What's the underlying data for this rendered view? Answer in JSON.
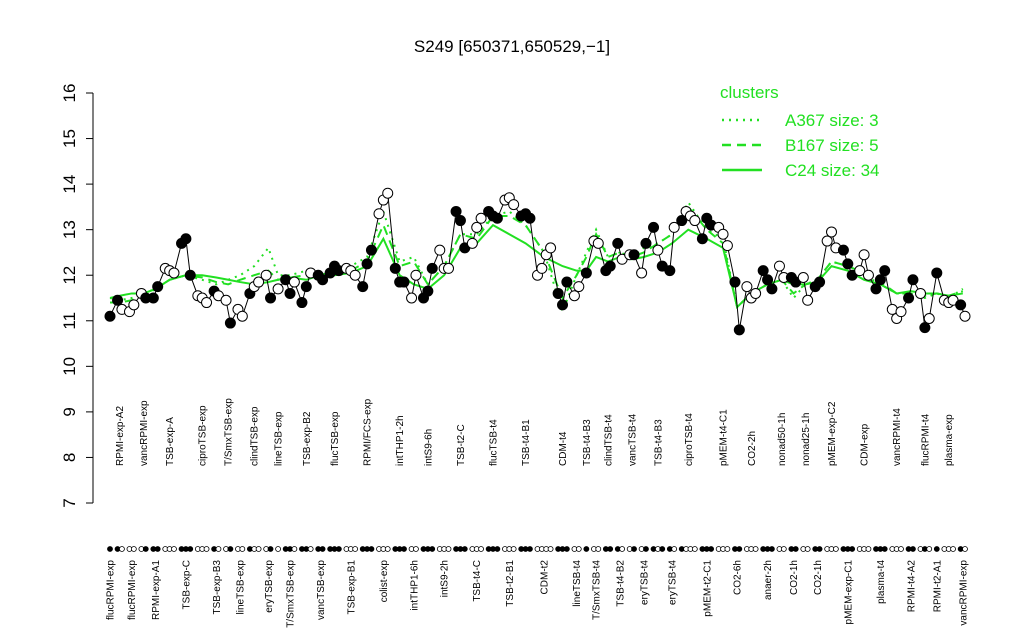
{
  "chart_data": {
    "type": "cluster-profile",
    "title": "S249 [650371,650529,−1]",
    "ylim": [
      7,
      16
    ],
    "yticks": [
      7,
      8,
      9,
      10,
      11,
      12,
      13,
      14,
      15,
      16
    ],
    "legend": {
      "title": "clusters",
      "position": "top-right"
    },
    "series": [
      {
        "name": "A367 size: 3",
        "color": "#22e022",
        "style": "dotted"
      },
      {
        "name": "B167 size: 5",
        "color": "#22e022",
        "style": "dashed"
      },
      {
        "name": "C24 size: 34",
        "color": "#22e022",
        "style": "solid"
      }
    ],
    "groups": [
      {
        "label": "flucRPMI-exp",
        "values": [
          11.1
        ],
        "filled": [
          1
        ],
        "trend": [
          11.5,
          11.4,
          11.5
        ]
      },
      {
        "label": "RPMI-exp-A2",
        "values": [
          11.45,
          11.25
        ],
        "filled": [
          1,
          0
        ],
        "trend": [
          11.45,
          11.4,
          11.55
        ]
      },
      {
        "label": "flucRPMI-exp",
        "values": [
          11.2,
          11.35
        ],
        "filled": [
          0,
          0
        ],
        "trend": [
          11.5,
          11.45,
          11.6
        ]
      },
      {
        "label": "vancRPMI-exp",
        "values": [
          11.6,
          11.5
        ],
        "filled": [
          0,
          1
        ],
        "trend": [
          11.6,
          11.55,
          11.6
        ]
      },
      {
        "label": "RPMI-exp-A1",
        "values": [
          11.5,
          11.75
        ],
        "filled": [
          1,
          1
        ],
        "trend": [
          11.7,
          11.7,
          11.7
        ]
      },
      {
        "label": "TSB-exp-A",
        "values": [
          12.15,
          12.1,
          12.05
        ],
        "filled": [
          0,
          0,
          0
        ],
        "trend": [
          11.9,
          11.9,
          11.9
        ]
      },
      {
        "label": "TSB-exp-C",
        "values": [
          12.7,
          12.8,
          12.0
        ],
        "filled": [
          1,
          1,
          1
        ],
        "trend": [
          12.0,
          12.0,
          12.0
        ]
      },
      {
        "label": "ciproTSB-exp",
        "values": [
          11.55,
          11.5,
          11.4
        ],
        "filled": [
          0,
          0,
          0
        ],
        "trend": [
          11.9,
          11.95,
          12.0
        ]
      },
      {
        "label": "TSB-exp-B3",
        "values": [
          11.65,
          11.55
        ],
        "filled": [
          1,
          0
        ],
        "trend": [
          11.8,
          11.85,
          11.95
        ]
      },
      {
        "label": "T/SmxTSB-exp",
        "values": [
          11.45,
          10.95
        ],
        "filled": [
          0,
          1
        ],
        "trend": [
          11.9,
          11.8,
          11.9
        ]
      },
      {
        "label": "lineTSB-exp",
        "values": [
          11.25,
          11.1
        ],
        "filled": [
          0,
          0
        ],
        "trend": [
          12.0,
          11.9,
          11.85
        ]
      },
      {
        "label": "clindTSB-exp",
        "values": [
          11.6,
          11.75,
          11.85
        ],
        "filled": [
          1,
          0,
          0
        ],
        "trend": [
          12.2,
          12.0,
          11.8
        ]
      },
      {
        "label": "eryTSB-exp",
        "values": [
          12.0,
          11.5
        ],
        "filled": [
          0,
          1
        ],
        "trend": [
          12.6,
          12.1,
          11.85
        ]
      },
      {
        "label": "lineTSB-exp",
        "values": [
          11.7
        ],
        "filled": [
          0
        ],
        "trend": [
          12.0,
          11.9,
          11.9
        ]
      },
      {
        "label": "T/SmxTSB-exp",
        "values": [
          11.9,
          11.6,
          11.85
        ],
        "filled": [
          1,
          1,
          0
        ],
        "trend": [
          12.0,
          11.95,
          11.95
        ]
      },
      {
        "label": "TSB-exp-B2",
        "values": [
          11.4,
          11.75,
          12.05
        ],
        "filled": [
          1,
          1,
          0
        ],
        "trend": [
          12.1,
          12.0,
          11.9
        ]
      },
      {
        "label": "vancTSB-exp",
        "values": [
          12.0,
          11.9
        ],
        "filled": [
          1,
          1
        ],
        "trend": [
          12.0,
          12.0,
          12.0
        ]
      },
      {
        "label": "flucTSB-exp",
        "values": [
          12.05,
          12.2,
          12.1
        ],
        "filled": [
          1,
          1,
          1
        ],
        "trend": [
          12.1,
          12.1,
          12.0
        ]
      },
      {
        "label": "TSB-exp-B1",
        "values": [
          12.15,
          12.1,
          12.0
        ],
        "filled": [
          0,
          0,
          0
        ],
        "trend": [
          12.2,
          12.1,
          12.05
        ]
      },
      {
        "label": "RPMI/FCS-exp",
        "values": [
          11.75,
          12.25,
          12.55
        ],
        "filled": [
          1,
          1,
          1
        ],
        "trend": [
          12.4,
          12.3,
          12.2
        ]
      },
      {
        "label": "colist-exp",
        "values": [
          13.35,
          13.65,
          13.8
        ],
        "filled": [
          0,
          0,
          0
        ],
        "trend": [
          13.4,
          13.1,
          12.8
        ]
      },
      {
        "label": "intTHP1-2h",
        "values": [
          12.15,
          11.85,
          11.85
        ],
        "filled": [
          1,
          1,
          1
        ],
        "trend": [
          12.3,
          12.2,
          12.0
        ]
      },
      {
        "label": "intTHP1-6h",
        "values": [
          11.5,
          12.0
        ],
        "filled": [
          0,
          0
        ],
        "trend": [
          12.4,
          12.3,
          11.8
        ]
      },
      {
        "label": "intS9-6h",
        "values": [
          11.5,
          11.65,
          12.15
        ],
        "filled": [
          1,
          1,
          1
        ],
        "trend": [
          11.8,
          11.8,
          11.7
        ]
      },
      {
        "label": "intS9-2h",
        "values": [
          12.55,
          12.15,
          12.15
        ],
        "filled": [
          0,
          0,
          0
        ],
        "trend": [
          12.2,
          12.2,
          12.0
        ]
      },
      {
        "label": "TSB-t2-C",
        "values": [
          13.4,
          13.2,
          12.6
        ],
        "filled": [
          1,
          1,
          1
        ],
        "trend": [
          12.9,
          12.9,
          12.6
        ]
      },
      {
        "label": "TSB-t4-C",
        "values": [
          12.7,
          13.05,
          13.25
        ],
        "filled": [
          0,
          0,
          0
        ],
        "trend": [
          12.9,
          12.8,
          12.7
        ]
      },
      {
        "label": "flucTSB-t4",
        "values": [
          13.4,
          13.3,
          13.25
        ],
        "filled": [
          1,
          1,
          1
        ],
        "trend": [
          13.3,
          13.3,
          13.1
        ]
      },
      {
        "label": "TSB-t2-B1",
        "values": [
          13.65,
          13.7,
          13.55
        ],
        "filled": [
          0,
          0,
          0
        ],
        "trend": [
          13.4,
          13.3,
          12.9
        ]
      },
      {
        "label": "TSB-t4-B1",
        "values": [
          13.3,
          13.35,
          13.25
        ],
        "filled": [
          1,
          1,
          1
        ],
        "trend": [
          13.1,
          13.1,
          12.7
        ]
      },
      {
        "label": "CDM-t2",
        "values": [
          12.0,
          12.15,
          12.45,
          12.6
        ],
        "filled": [
          0,
          0,
          0,
          0
        ],
        "trend": [
          12.5,
          12.5,
          12.4
        ]
      },
      {
        "label": "CDM-t4",
        "values": [
          11.6,
          11.35,
          11.85
        ],
        "filled": [
          1,
          1,
          1
        ],
        "trend": [
          11.2,
          11.5,
          12.2
        ]
      },
      {
        "label": "lineTSB-t4",
        "values": [
          11.55,
          11.75
        ],
        "filled": [
          0,
          0
        ],
        "trend": [
          12.0,
          12.0,
          12.1
        ]
      },
      {
        "label": "TSB-t4-B3",
        "values": [
          12.05
        ],
        "filled": [
          1
        ],
        "trend": [
          12.5,
          12.4,
          12.1
        ]
      },
      {
        "label": "T/SmxTSB-t4",
        "values": [
          12.75,
          12.7
        ],
        "filled": [
          0,
          0
        ],
        "trend": [
          13.0,
          12.9,
          12.4
        ]
      },
      {
        "label": "clindTSB-t4",
        "values": [
          12.1,
          12.2
        ],
        "filled": [
          1,
          1
        ],
        "trend": [
          12.4,
          12.4,
          12.3
        ]
      },
      {
        "label": "TSB-t4-B2",
        "values": [
          12.7,
          12.35
        ],
        "filled": [
          1,
          0
        ],
        "trend": [
          12.5,
          12.5,
          12.4
        ]
      },
      {
        "label": "vancTSB-t4",
        "values": [
          12.45,
          12.45
        ],
        "filled": [
          0,
          1
        ],
        "trend": [
          12.4,
          12.4,
          12.35
        ]
      },
      {
        "label": "eryTSB-t4",
        "values": [
          12.05,
          12.7
        ],
        "filled": [
          0,
          1
        ],
        "trend": [
          12.6,
          12.5,
          12.4
        ]
      },
      {
        "label": "TSB-t4-B3",
        "values": [
          13.05,
          12.55,
          12.2
        ],
        "filled": [
          1,
          0,
          1
        ],
        "trend": [
          12.7,
          12.7,
          12.5
        ]
      },
      {
        "label": "eryTSB-t4",
        "values": [
          12.1,
          13.05
        ],
        "filled": [
          1,
          0
        ],
        "trend": [
          12.9,
          12.9,
          12.7
        ]
      },
      {
        "label": "ciproTSB-t4",
        "values": [
          13.2,
          13.4,
          13.3,
          13.2
        ],
        "filled": [
          1,
          0,
          0,
          0
        ],
        "trend": [
          13.6,
          13.5,
          13.0
        ]
      },
      {
        "label": "pMEM-t2-C1",
        "values": [
          12.8,
          13.25,
          13.1
        ],
        "filled": [
          1,
          1,
          1
        ],
        "trend": [
          13.0,
          13.0,
          12.8
        ]
      },
      {
        "label": "pMEM-t4-C1",
        "values": [
          13.05,
          12.9,
          12.65
        ],
        "filled": [
          0,
          0,
          0
        ],
        "trend": [
          12.8,
          12.7,
          12.6
        ]
      },
      {
        "label": "CO2-6h",
        "values": [
          11.85,
          10.8
        ],
        "filled": [
          1,
          1
        ],
        "trend": [
          11.3,
          11.3,
          11.3
        ]
      },
      {
        "label": "CO2-2h",
        "values": [
          11.75,
          11.5,
          11.6
        ],
        "filled": [
          0,
          0,
          0
        ],
        "trend": [
          11.6,
          11.6,
          11.6
        ]
      },
      {
        "label": "anaer-2h",
        "values": [
          12.1,
          11.9,
          11.7
        ],
        "filled": [
          1,
          1,
          1
        ],
        "trend": [
          11.8,
          11.8,
          11.8
        ]
      },
      {
        "label": "nonad50-1h",
        "values": [
          12.2,
          11.95
        ],
        "filled": [
          0,
          0
        ],
        "trend": [
          11.9,
          11.9,
          11.9
        ]
      },
      {
        "label": "CO2-1h",
        "values": [
          11.95,
          11.85
        ],
        "filled": [
          1,
          1
        ],
        "trend": [
          11.5,
          11.6,
          11.8
        ]
      },
      {
        "label": "nonad25-1h",
        "values": [
          11.95,
          11.45
        ],
        "filled": [
          0,
          0
        ],
        "trend": [
          11.8,
          11.8,
          11.8
        ]
      },
      {
        "label": "CO2-1h",
        "values": [
          11.75,
          11.85
        ],
        "filled": [
          1,
          1
        ],
        "trend": [
          11.9,
          11.9,
          11.85
        ]
      },
      {
        "label": "pMEM-exp-C2",
        "values": [
          12.75,
          12.95,
          12.6
        ],
        "filled": [
          0,
          0,
          0
        ],
        "trend": [
          12.3,
          12.3,
          12.2
        ]
      },
      {
        "label": "pMEM-exp-C1",
        "values": [
          12.55,
          12.25,
          12.0
        ],
        "filled": [
          1,
          1,
          1
        ],
        "trend": [
          12.2,
          12.2,
          12.1
        ]
      },
      {
        "label": "CDM-exp",
        "values": [
          12.1,
          12.45,
          12.0
        ],
        "filled": [
          0,
          0,
          0
        ],
        "trend": [
          12.0,
          12.05,
          11.9
        ]
      },
      {
        "label": "plasma-t4",
        "values": [
          11.7,
          11.9,
          12.1
        ],
        "filled": [
          1,
          1,
          1
        ],
        "trend": [
          11.8,
          11.85,
          11.8
        ]
      },
      {
        "label": "vancRPMI-t4",
        "values": [
          11.25,
          11.05,
          11.2
        ],
        "filled": [
          0,
          0,
          0
        ],
        "trend": [
          11.6,
          11.6,
          11.6
        ]
      },
      {
        "label": "RPMI-t4-A2",
        "values": [
          11.5,
          11.9
        ],
        "filled": [
          1,
          1
        ],
        "trend": [
          11.6,
          11.6,
          11.65
        ]
      },
      {
        "label": "flucRPMI-t4",
        "values": [
          11.6,
          10.85,
          11.05
        ],
        "filled": [
          0,
          1,
          0
        ],
        "trend": [
          11.5,
          11.55,
          11.6
        ]
      },
      {
        "label": "RPMI-t2-A1",
        "values": [
          12.05
        ],
        "filled": [
          1
        ],
        "trend": [
          11.6,
          11.6,
          11.6
        ]
      },
      {
        "label": "plasma-exp",
        "values": [
          11.45,
          11.4,
          11.45
        ],
        "filled": [
          0,
          0,
          0
        ],
        "trend": [
          11.5,
          11.55,
          11.55
        ]
      },
      {
        "label": "vancRPMI-exp",
        "values": [
          11.35,
          11.1
        ],
        "filled": [
          1,
          0
        ],
        "trend": [
          11.7,
          11.65,
          11.6
        ]
      }
    ]
  }
}
